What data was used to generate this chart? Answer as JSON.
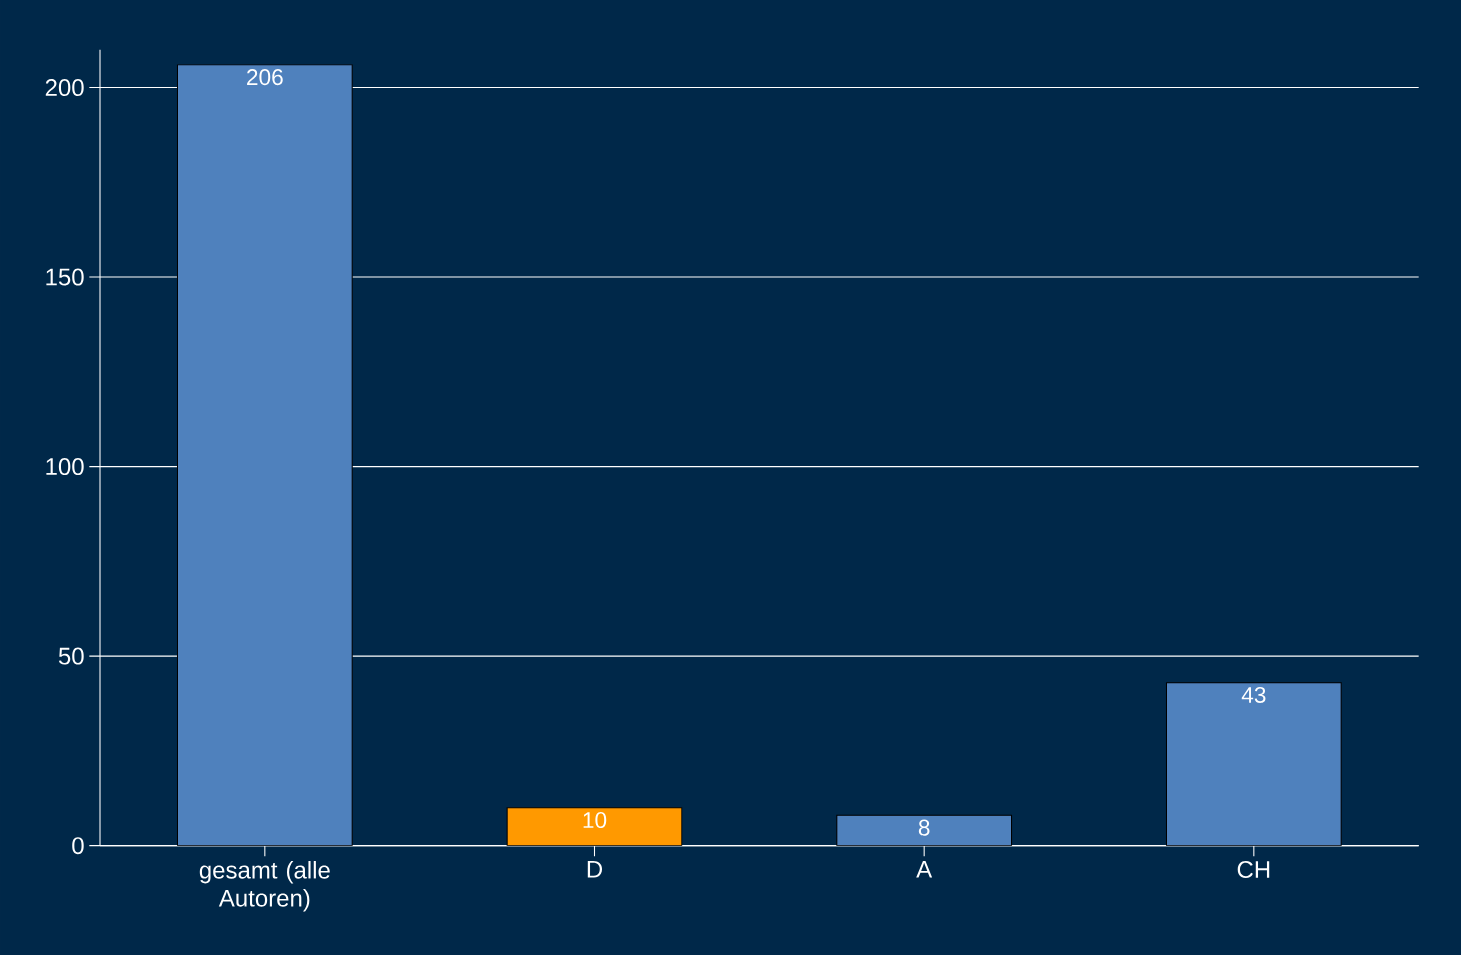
{
  "chart_data": {
    "type": "bar",
    "categories": [
      "gesamt (alle Autoren)",
      "D",
      "A",
      "CH"
    ],
    "values": [
      206,
      10,
      8,
      43
    ],
    "colors": [
      "#4f81bd",
      "#ff9900",
      "#4f81bd",
      "#4f81bd"
    ],
    "ylim": [
      0,
      210
    ],
    "yticks": [
      0,
      50,
      100,
      150,
      200
    ],
    "grid": "y",
    "data_labels": true
  }
}
